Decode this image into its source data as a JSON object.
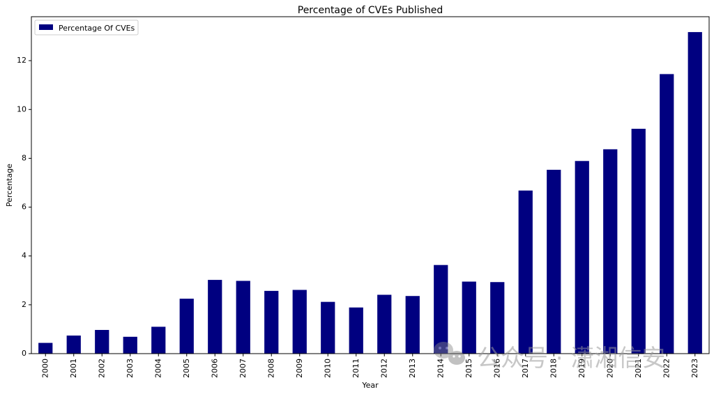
{
  "chart_data": {
    "type": "bar",
    "title": "Percentage of CVEs Published",
    "xlabel": "Year",
    "ylabel": "Percentage",
    "categories": [
      "2000",
      "2001",
      "2002",
      "2003",
      "2004",
      "2005",
      "2006",
      "2007",
      "2008",
      "2009",
      "2010",
      "2011",
      "2012",
      "2013",
      "2014",
      "2015",
      "2016",
      "2017",
      "2018",
      "2019",
      "2020",
      "2021",
      "2022",
      "2023"
    ],
    "series": [
      {
        "name": "Percentage Of CVEs",
        "color": "#000080",
        "values": [
          0.44,
          0.74,
          0.97,
          0.69,
          1.1,
          2.25,
          3.02,
          2.98,
          2.57,
          2.61,
          2.12,
          1.89,
          2.41,
          2.36,
          3.63,
          2.95,
          2.93,
          6.68,
          7.53,
          7.89,
          8.37,
          9.21,
          11.45,
          13.17
        ]
      }
    ],
    "ylim": [
      0,
      13.8
    ],
    "yticks": [
      0,
      2,
      4,
      6,
      8,
      10,
      12
    ],
    "ytick_labels": [
      "0",
      "2",
      "4",
      "6",
      "8",
      "10",
      "12"
    ],
    "grid": false,
    "legend_position": "top-left"
  },
  "watermark": {
    "icon": "wechat-icon",
    "text": "公众号 · 潇湘信安"
  }
}
